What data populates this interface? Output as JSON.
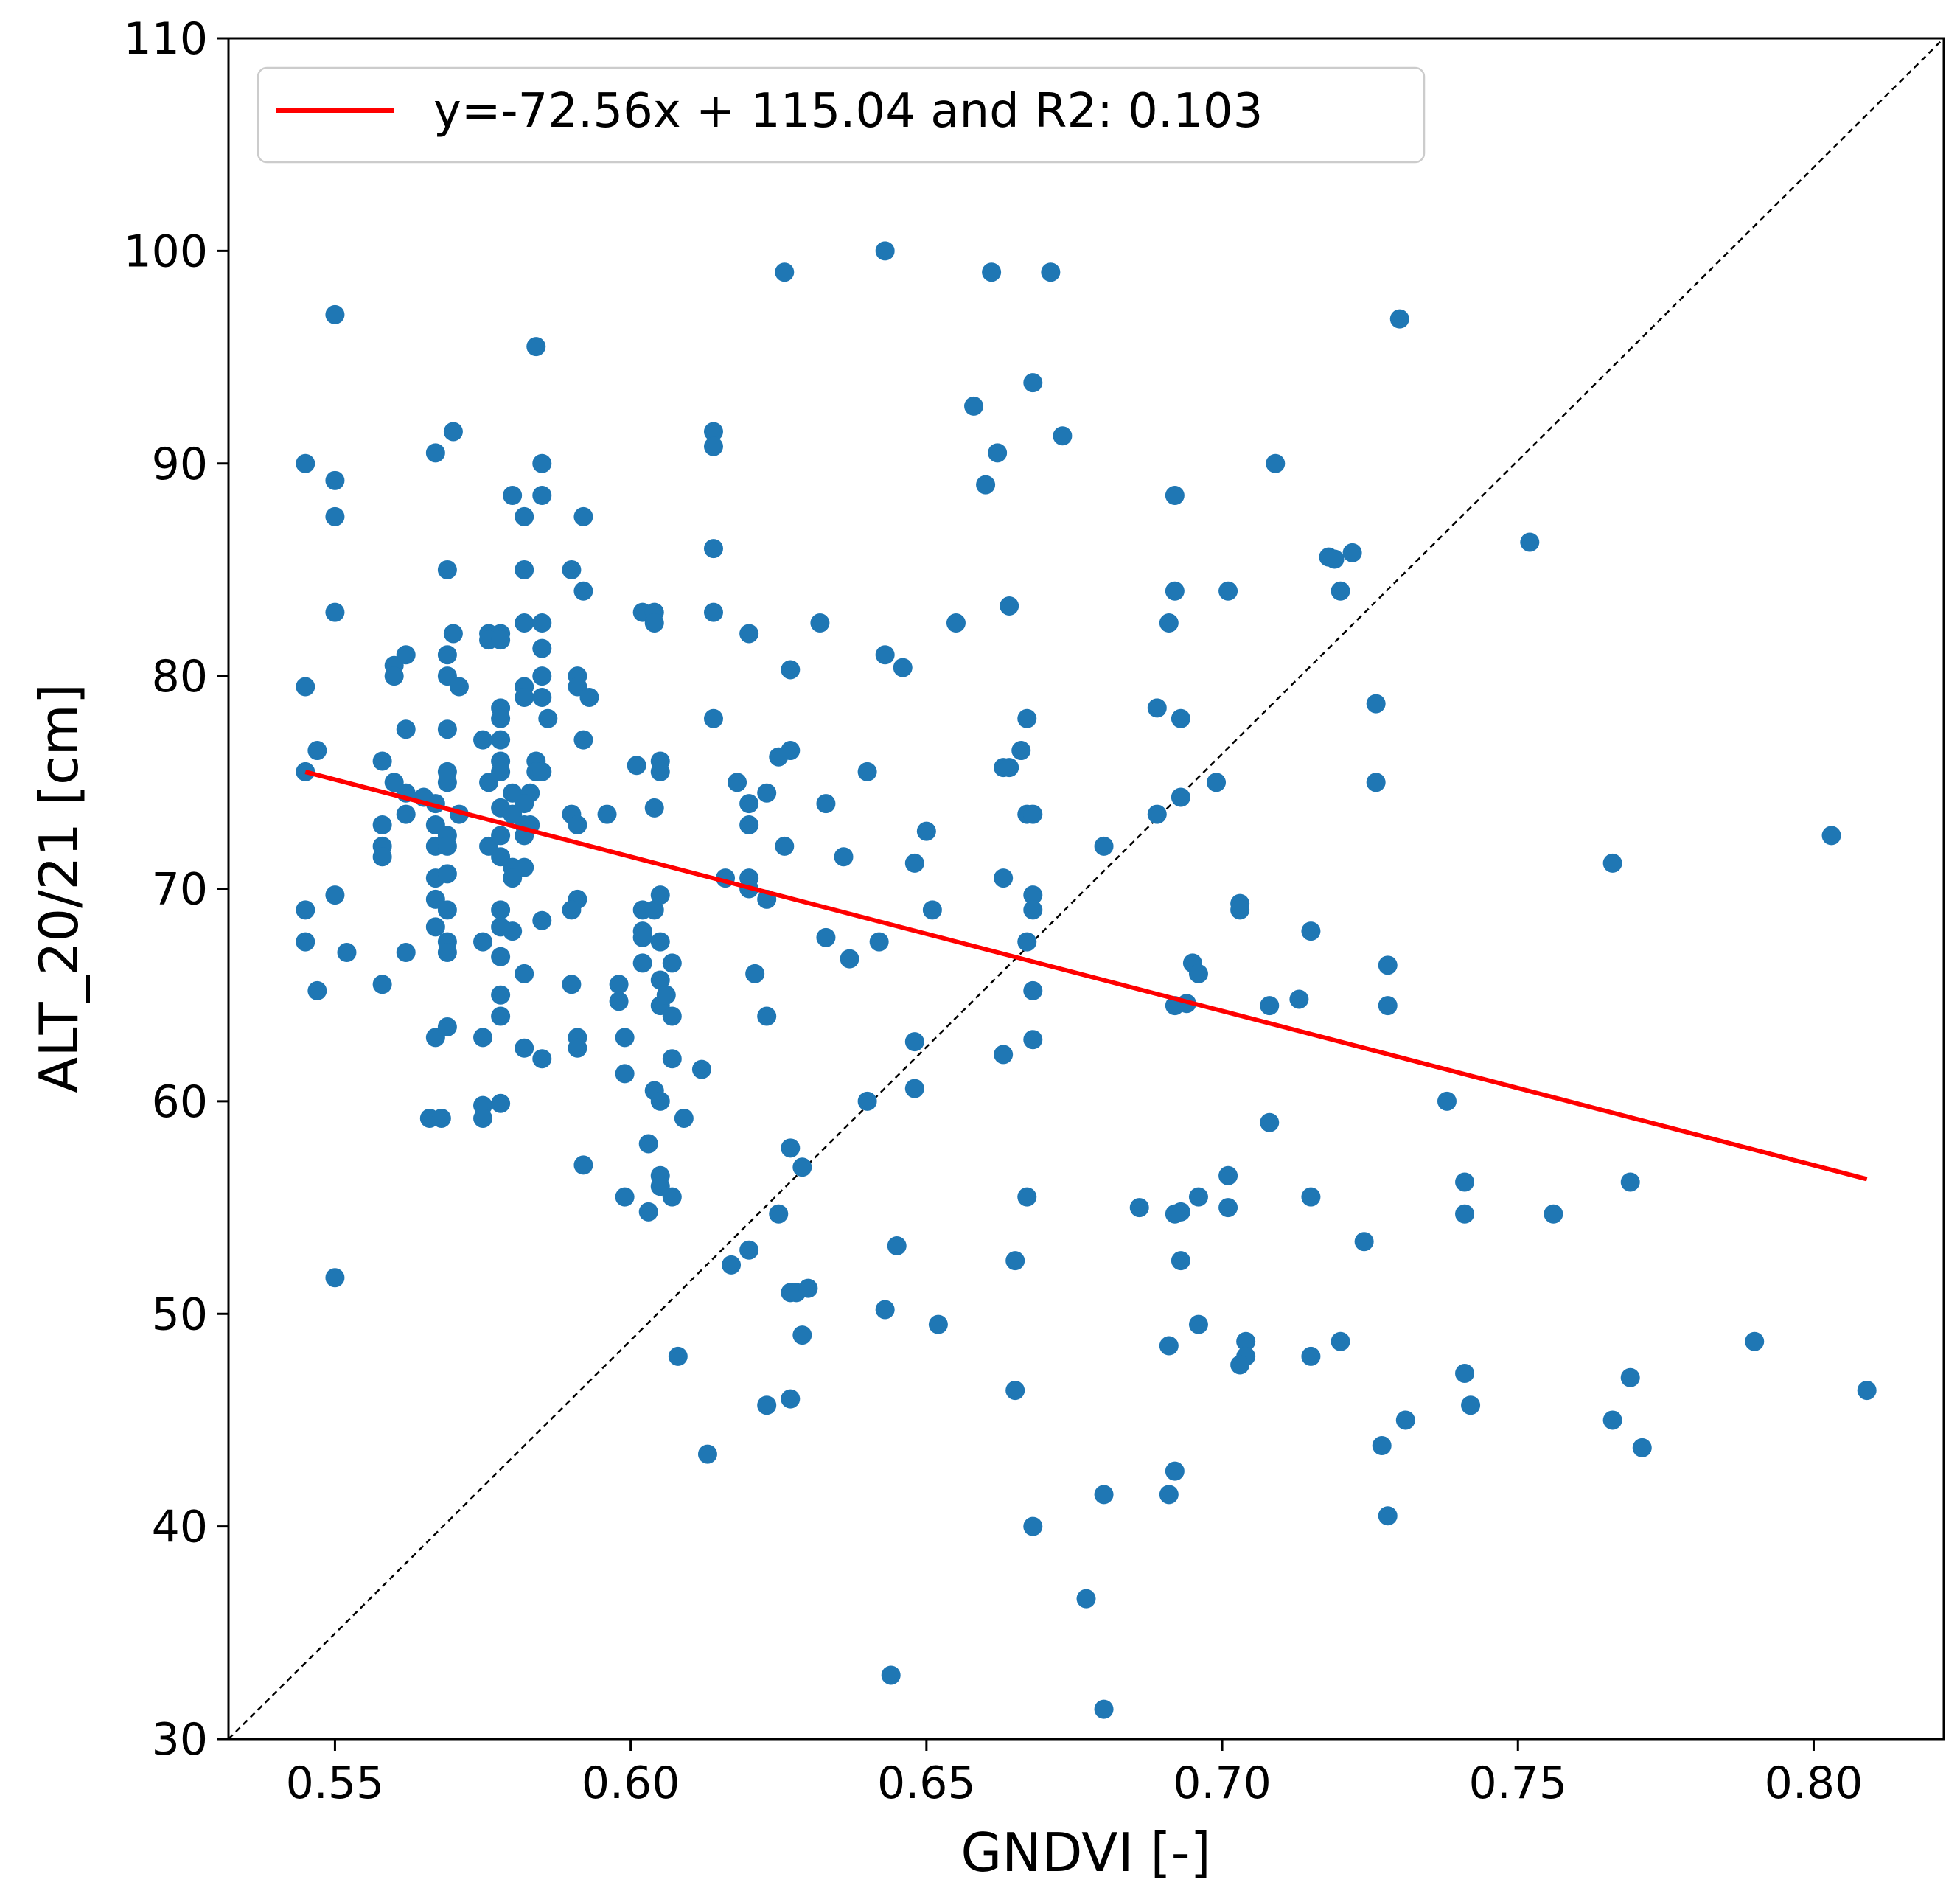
{
  "colors": {
    "points": "#1f77b4",
    "regression": "#ff0000",
    "identity": "#000000",
    "axes": "#000000",
    "legend_border": "#cccccc"
  },
  "chart_data": {
    "type": "scatter",
    "title": "",
    "xlabel": "GNDVI [-]",
    "ylabel": "ALT_20/21  [cm]",
    "xlim": [
      0.532,
      0.822
    ],
    "ylim": [
      30,
      110
    ],
    "xticks": [
      0.55,
      0.6,
      0.65,
      0.7,
      0.75,
      0.8
    ],
    "xtick_labels": [
      "0.55",
      "0.60",
      "0.65",
      "0.70",
      "0.75",
      "0.80"
    ],
    "yticks": [
      30,
      40,
      50,
      60,
      70,
      80,
      90,
      100,
      110
    ],
    "ytick_labels": [
      "30",
      "40",
      "50",
      "60",
      "70",
      "80",
      "90",
      "100",
      "110"
    ],
    "grid": false,
    "legend_position": "top-left",
    "legend": [
      {
        "label": "y=-72.56x + 115.04 and R2: 0.103",
        "style": "red-line"
      }
    ],
    "regression": {
      "slope": -72.56,
      "intercept": 115.04,
      "r2": 0.103,
      "x_range": [
        0.545,
        0.809
      ]
    },
    "identity_line": true,
    "points": [
      [
        0.55,
        97.0
      ],
      [
        0.545,
        90.0
      ],
      [
        0.55,
        89.2
      ],
      [
        0.55,
        87.5
      ],
      [
        0.55,
        83.0
      ],
      [
        0.545,
        79.5
      ],
      [
        0.547,
        76.5
      ],
      [
        0.545,
        75.5
      ],
      [
        0.545,
        69.0
      ],
      [
        0.55,
        69.7
      ],
      [
        0.545,
        67.5
      ],
      [
        0.552,
        67.0
      ],
      [
        0.547,
        65.2
      ],
      [
        0.55,
        51.7
      ],
      [
        0.558,
        76.0
      ],
      [
        0.558,
        73.0
      ],
      [
        0.558,
        72.0
      ],
      [
        0.558,
        71.5
      ],
      [
        0.558,
        65.5
      ],
      [
        0.56,
        80.5
      ],
      [
        0.56,
        80.0
      ],
      [
        0.562,
        81.0
      ],
      [
        0.562,
        77.5
      ],
      [
        0.56,
        75.0
      ],
      [
        0.562,
        74.5
      ],
      [
        0.562,
        73.5
      ],
      [
        0.565,
        74.3
      ],
      [
        0.562,
        67.0
      ],
      [
        0.567,
        90.5
      ],
      [
        0.57,
        91.5
      ],
      [
        0.569,
        85.0
      ],
      [
        0.57,
        82.0
      ],
      [
        0.569,
        81.0
      ],
      [
        0.569,
        80.0
      ],
      [
        0.571,
        79.5
      ],
      [
        0.569,
        77.5
      ],
      [
        0.569,
        75.5
      ],
      [
        0.569,
        75.0
      ],
      [
        0.567,
        74.0
      ],
      [
        0.571,
        73.5
      ],
      [
        0.567,
        73.0
      ],
      [
        0.569,
        72.5
      ],
      [
        0.567,
        72.0
      ],
      [
        0.569,
        72.0
      ],
      [
        0.567,
        70.5
      ],
      [
        0.569,
        70.7
      ],
      [
        0.567,
        69.5
      ],
      [
        0.569,
        69.0
      ],
      [
        0.567,
        68.2
      ],
      [
        0.569,
        67.5
      ],
      [
        0.569,
        67.0
      ],
      [
        0.567,
        63.0
      ],
      [
        0.569,
        63.5
      ],
      [
        0.566,
        59.2
      ],
      [
        0.568,
        59.2
      ],
      [
        0.576,
        82.0
      ],
      [
        0.578,
        82.0
      ],
      [
        0.576,
        81.7
      ],
      [
        0.578,
        81.7
      ],
      [
        0.578,
        78.5
      ],
      [
        0.578,
        78.0
      ],
      [
        0.575,
        77.0
      ],
      [
        0.578,
        77.0
      ],
      [
        0.578,
        76.0
      ],
      [
        0.576,
        75.0
      ],
      [
        0.578,
        75.5
      ],
      [
        0.58,
        74.5
      ],
      [
        0.578,
        73.8
      ],
      [
        0.58,
        73.5
      ],
      [
        0.576,
        72.0
      ],
      [
        0.578,
        72.5
      ],
      [
        0.578,
        71.5
      ],
      [
        0.58,
        71.0
      ],
      [
        0.58,
        70.5
      ],
      [
        0.578,
        69.0
      ],
      [
        0.578,
        68.2
      ],
      [
        0.58,
        68.0
      ],
      [
        0.575,
        67.5
      ],
      [
        0.578,
        66.8
      ],
      [
        0.578,
        65.0
      ],
      [
        0.578,
        64.0
      ],
      [
        0.575,
        63.0
      ],
      [
        0.575,
        59.8
      ],
      [
        0.578,
        59.9
      ],
      [
        0.575,
        59.2
      ],
      [
        0.58,
        88.5
      ],
      [
        0.582,
        87.5
      ],
      [
        0.582,
        85.0
      ],
      [
        0.582,
        82.5
      ],
      [
        0.582,
        79.5
      ],
      [
        0.582,
        79.0
      ],
      [
        0.584,
        76.0
      ],
      [
        0.584,
        75.5
      ],
      [
        0.583,
        74.5
      ],
      [
        0.582,
        74.0
      ],
      [
        0.582,
        73.0
      ],
      [
        0.582,
        72.5
      ],
      [
        0.582,
        71.0
      ],
      [
        0.582,
        66.0
      ],
      [
        0.582,
        62.5
      ],
      [
        0.584,
        95.5
      ],
      [
        0.585,
        90.0
      ],
      [
        0.585,
        88.5
      ],
      [
        0.585,
        82.5
      ],
      [
        0.585,
        81.3
      ],
      [
        0.585,
        80.0
      ],
      [
        0.585,
        79.0
      ],
      [
        0.586,
        78.0
      ],
      [
        0.585,
        75.5
      ],
      [
        0.583,
        73.0
      ],
      [
        0.585,
        68.5
      ],
      [
        0.585,
        62.0
      ],
      [
        0.592,
        87.5
      ],
      [
        0.59,
        85.0
      ],
      [
        0.592,
        84.0
      ],
      [
        0.591,
        80.0
      ],
      [
        0.591,
        79.5
      ],
      [
        0.593,
        79.0
      ],
      [
        0.592,
        77.0
      ],
      [
        0.59,
        73.5
      ],
      [
        0.591,
        73.0
      ],
      [
        0.591,
        69.5
      ],
      [
        0.59,
        69.0
      ],
      [
        0.59,
        65.5
      ],
      [
        0.591,
        63.0
      ],
      [
        0.591,
        62.5
      ],
      [
        0.592,
        57.0
      ],
      [
        0.596,
        73.5
      ],
      [
        0.601,
        75.8
      ],
      [
        0.598,
        65.5
      ],
      [
        0.598,
        64.7
      ],
      [
        0.599,
        63.0
      ],
      [
        0.599,
        61.3
      ],
      [
        0.599,
        55.5
      ],
      [
        0.602,
        83.0
      ],
      [
        0.604,
        83.0
      ],
      [
        0.604,
        82.5
      ],
      [
        0.602,
        69.0
      ],
      [
        0.604,
        69.0
      ],
      [
        0.602,
        68.0
      ],
      [
        0.602,
        67.7
      ],
      [
        0.602,
        66.5
      ],
      [
        0.603,
        58.0
      ],
      [
        0.603,
        54.8
      ],
      [
        0.604,
        73.8
      ],
      [
        0.605,
        76.0
      ],
      [
        0.605,
        75.5
      ],
      [
        0.605,
        69.7
      ],
      [
        0.605,
        67.5
      ],
      [
        0.605,
        65.7
      ],
      [
        0.604,
        60.5
      ],
      [
        0.605,
        60.0
      ],
      [
        0.605,
        56.5
      ],
      [
        0.605,
        56.0
      ],
      [
        0.605,
        64.5
      ],
      [
        0.606,
        65.0
      ],
      [
        0.607,
        66.5
      ],
      [
        0.607,
        64.0
      ],
      [
        0.607,
        62.0
      ],
      [
        0.607,
        55.5
      ],
      [
        0.608,
        48.0
      ],
      [
        0.609,
        59.2
      ],
      [
        0.612,
        61.5
      ],
      [
        0.614,
        91.5
      ],
      [
        0.614,
        90.8
      ],
      [
        0.614,
        86.0
      ],
      [
        0.614,
        83.0
      ],
      [
        0.614,
        78.0
      ],
      [
        0.613,
        43.4
      ],
      [
        0.616,
        70.5
      ],
      [
        0.618,
        75.0
      ],
      [
        0.617,
        52.3
      ],
      [
        0.62,
        82.0
      ],
      [
        0.62,
        74.0
      ],
      [
        0.62,
        73.0
      ],
      [
        0.62,
        70.5
      ],
      [
        0.62,
        70.0
      ],
      [
        0.621,
        66.0
      ],
      [
        0.62,
        53.0
      ],
      [
        0.623,
        74.5
      ],
      [
        0.623,
        69.5
      ],
      [
        0.623,
        64.0
      ],
      [
        0.623,
        45.7
      ],
      [
        0.625,
        76.2
      ],
      [
        0.625,
        54.7
      ],
      [
        0.626,
        99.0
      ],
      [
        0.627,
        80.3
      ],
      [
        0.627,
        76.5
      ],
      [
        0.626,
        72.0
      ],
      [
        0.627,
        57.8
      ],
      [
        0.627,
        51.0
      ],
      [
        0.627,
        46.0
      ],
      [
        0.628,
        51.0
      ],
      [
        0.629,
        56.9
      ],
      [
        0.63,
        51.2
      ],
      [
        0.629,
        49.0
      ],
      [
        0.632,
        82.5
      ],
      [
        0.633,
        74.0
      ],
      [
        0.633,
        67.7
      ],
      [
        0.636,
        71.5
      ],
      [
        0.637,
        66.7
      ],
      [
        0.64,
        75.5
      ],
      [
        0.64,
        60.0
      ],
      [
        0.642,
        67.5
      ],
      [
        0.643,
        100.0
      ],
      [
        0.643,
        81.0
      ],
      [
        0.643,
        50.2
      ],
      [
        0.644,
        33.0
      ],
      [
        0.645,
        53.2
      ],
      [
        0.646,
        80.4
      ],
      [
        0.648,
        71.2
      ],
      [
        0.648,
        62.8
      ],
      [
        0.648,
        60.6
      ],
      [
        0.65,
        72.7
      ],
      [
        0.651,
        69.0
      ],
      [
        0.652,
        49.5
      ],
      [
        0.655,
        82.5
      ],
      [
        0.658,
        92.7
      ],
      [
        0.66,
        89.0
      ],
      [
        0.661,
        99.0
      ],
      [
        0.662,
        90.5
      ],
      [
        0.664,
        83.3
      ],
      [
        0.663,
        75.7
      ],
      [
        0.664,
        75.7
      ],
      [
        0.663,
        70.5
      ],
      [
        0.663,
        62.2
      ],
      [
        0.665,
        52.5
      ],
      [
        0.665,
        46.4
      ],
      [
        0.666,
        76.5
      ],
      [
        0.667,
        78.0
      ],
      [
        0.667,
        73.5
      ],
      [
        0.668,
        73.5
      ],
      [
        0.668,
        69.7
      ],
      [
        0.668,
        69.0
      ],
      [
        0.667,
        67.5
      ],
      [
        0.668,
        65.2
      ],
      [
        0.668,
        62.9
      ],
      [
        0.667,
        55.5
      ],
      [
        0.668,
        40.0
      ],
      [
        0.668,
        93.8
      ],
      [
        0.671,
        99.0
      ],
      [
        0.673,
        91.3
      ],
      [
        0.677,
        36.6
      ],
      [
        0.68,
        72.0
      ],
      [
        0.68,
        41.5
      ],
      [
        0.68,
        31.4
      ],
      [
        0.686,
        55.0
      ],
      [
        0.689,
        78.5
      ],
      [
        0.689,
        73.5
      ],
      [
        0.691,
        82.5
      ],
      [
        0.692,
        88.5
      ],
      [
        0.692,
        84.0
      ],
      [
        0.693,
        78.0
      ],
      [
        0.693,
        74.3
      ],
      [
        0.692,
        64.5
      ],
      [
        0.694,
        64.6
      ],
      [
        0.692,
        54.7
      ],
      [
        0.693,
        54.8
      ],
      [
        0.693,
        52.5
      ],
      [
        0.691,
        48.5
      ],
      [
        0.692,
        42.6
      ],
      [
        0.691,
        41.5
      ],
      [
        0.695,
        66.5
      ],
      [
        0.696,
        66.0
      ],
      [
        0.696,
        55.5
      ],
      [
        0.696,
        49.5
      ],
      [
        0.699,
        75.0
      ],
      [
        0.701,
        84.0
      ],
      [
        0.701,
        56.5
      ],
      [
        0.701,
        55.0
      ],
      [
        0.703,
        69.3
      ],
      [
        0.703,
        69.0
      ],
      [
        0.704,
        48.7
      ],
      [
        0.704,
        48.0
      ],
      [
        0.703,
        47.6
      ],
      [
        0.708,
        64.5
      ],
      [
        0.708,
        59.0
      ],
      [
        0.709,
        90.0
      ],
      [
        0.713,
        64.8
      ],
      [
        0.715,
        68.0
      ],
      [
        0.715,
        55.5
      ],
      [
        0.715,
        48.0
      ],
      [
        0.718,
        85.6
      ],
      [
        0.719,
        85.5
      ],
      [
        0.72,
        84.0
      ],
      [
        0.72,
        48.7
      ],
      [
        0.722,
        85.8
      ],
      [
        0.724,
        53.4
      ],
      [
        0.726,
        78.7
      ],
      [
        0.726,
        75.0
      ],
      [
        0.727,
        43.8
      ],
      [
        0.728,
        66.4
      ],
      [
        0.728,
        64.5
      ],
      [
        0.728,
        40.5
      ],
      [
        0.73,
        96.8
      ],
      [
        0.731,
        45.0
      ],
      [
        0.738,
        60.0
      ],
      [
        0.741,
        56.2
      ],
      [
        0.741,
        54.7
      ],
      [
        0.741,
        47.2
      ],
      [
        0.742,
        45.7
      ],
      [
        0.752,
        86.3
      ],
      [
        0.756,
        54.7
      ],
      [
        0.766,
        71.2
      ],
      [
        0.766,
        45.0
      ],
      [
        0.769,
        56.2
      ],
      [
        0.769,
        47.0
      ],
      [
        0.771,
        43.7
      ],
      [
        0.79,
        48.7
      ],
      [
        0.803,
        72.5
      ],
      [
        0.809,
        46.4
      ]
    ]
  }
}
